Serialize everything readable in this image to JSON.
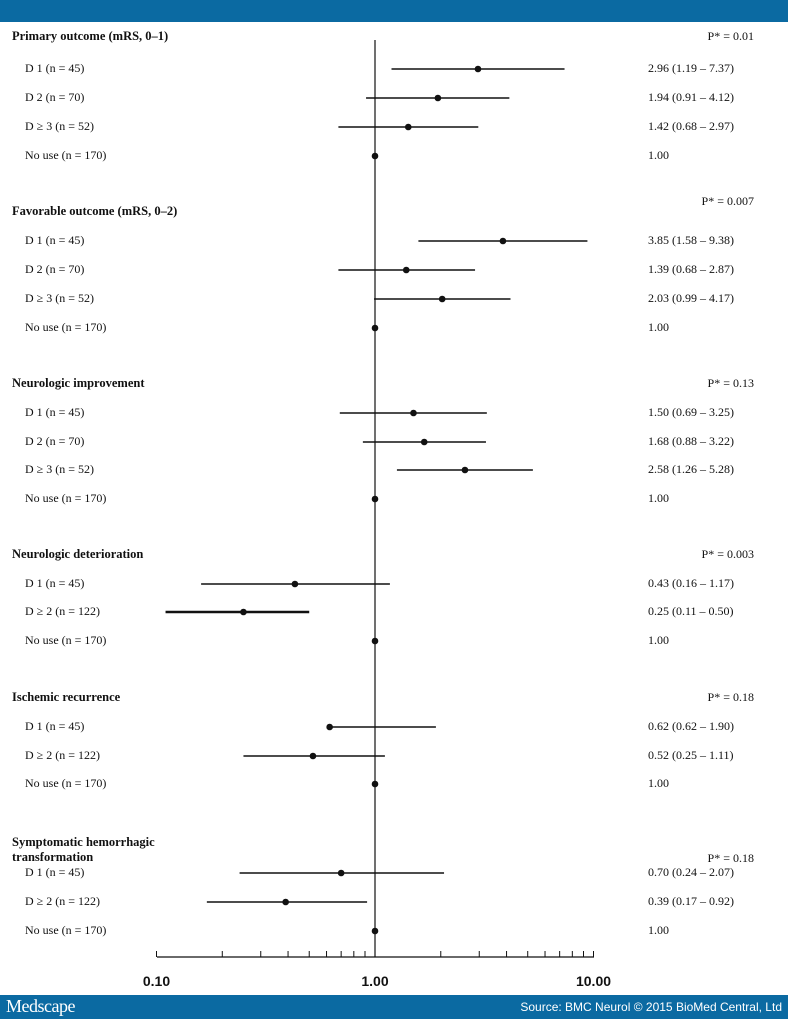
{
  "header": {
    "color": "#0b6aa2"
  },
  "footer": {
    "logo": "Medscape",
    "source": "Source: BMC Neurol © 2015 BioMed Central, Ltd"
  },
  "chart_data": {
    "type": "forest",
    "xscale": "log",
    "xlim": [
      0.1,
      10
    ],
    "reference_line": 1.0,
    "x_ticks": [
      "0.10",
      "1.00",
      "10.00"
    ],
    "groups": [
      {
        "title": "Primary outcome (mRS, 0–1)",
        "p_value": "P* = 0.01",
        "rows": [
          {
            "label": "D 1 (n = 45)",
            "text": "2.96 (1.19 – 7.37)",
            "or": 2.96,
            "lo": 1.19,
            "hi": 7.37
          },
          {
            "label": "D 2 (n = 70)",
            "text": "1.94 (0.91 – 4.12)",
            "or": 1.94,
            "lo": 0.91,
            "hi": 4.12
          },
          {
            "label": "D ≥ 3 (n = 52)",
            "text": "1.42 (0.68 – 2.97)",
            "or": 1.42,
            "lo": 0.68,
            "hi": 2.97
          },
          {
            "label": "No use (n = 170)",
            "text": "1.00",
            "or": 1.0
          }
        ]
      },
      {
        "title": "Favorable outcome (mRS, 0–2)",
        "p_value": "P* = 0.007",
        "rows": [
          {
            "label": "D 1 (n = 45)",
            "text": "3.85 (1.58 – 9.38)",
            "or": 3.85,
            "lo": 1.58,
            "hi": 9.38
          },
          {
            "label": "D 2 (n = 70)",
            "text": "1.39 (0.68 – 2.87)",
            "or": 1.39,
            "lo": 0.68,
            "hi": 2.87
          },
          {
            "label": "D ≥ 3 (n = 52)",
            "text": "2.03 (0.99 – 4.17)",
            "or": 2.03,
            "lo": 0.99,
            "hi": 4.17
          },
          {
            "label": "No use (n = 170)",
            "text": "1.00",
            "or": 1.0
          }
        ]
      },
      {
        "title": "Neurologic improvement",
        "p_value": "P* = 0.13",
        "rows": [
          {
            "label": "D 1 (n = 45)",
            "text": "1.50 (0.69 – 3.25)",
            "or": 1.5,
            "lo": 0.69,
            "hi": 3.25
          },
          {
            "label": "D 2 (n = 70)",
            "text": "1.68 (0.88 – 3.22)",
            "or": 1.68,
            "lo": 0.88,
            "hi": 3.22
          },
          {
            "label": "D ≥ 3 (n = 52)",
            "text": "2.58 (1.26 – 5.28)",
            "or": 2.58,
            "lo": 1.26,
            "hi": 5.28
          },
          {
            "label": "No use (n = 170)",
            "text": "1.00",
            "or": 1.0
          }
        ]
      },
      {
        "title": "Neurologic deterioration",
        "p_value": "P* = 0.003",
        "rows": [
          {
            "label": "D 1 (n = 45)",
            "text": "0.43 (0.16 – 1.17)",
            "or": 0.43,
            "lo": 0.16,
            "hi": 1.17
          },
          {
            "label": "D ≥ 2 (n = 122)",
            "text": "0.25 (0.11 – 0.50)",
            "or": 0.25,
            "lo": 0.11,
            "hi": 0.5
          },
          {
            "label": "No use (n = 170)",
            "text": "1.00",
            "or": 1.0
          }
        ]
      },
      {
        "title": "Ischemic recurrence",
        "p_value": "P* = 0.18",
        "rows": [
          {
            "label": "D 1 (n = 45)",
            "text": "0.62 (0.62 – 1.90)",
            "or": 0.62,
            "lo": 0.62,
            "hi": 1.9
          },
          {
            "label": "D ≥ 2 (n = 122)",
            "text": "0.52 (0.25 – 1.11)",
            "or": 0.52,
            "lo": 0.25,
            "hi": 1.11
          },
          {
            "label": "No use (n = 170)",
            "text": "1.00",
            "or": 1.0
          }
        ]
      },
      {
        "title": "Symptomatic hemorrhagic transformation",
        "p_value": "P* = 0.18",
        "rows": [
          {
            "label": "D 1 (n = 45)",
            "text": "0.70 (0.24 – 2.07)",
            "or": 0.7,
            "lo": 0.24,
            "hi": 2.07
          },
          {
            "label": "D ≥ 2 (n = 122)",
            "text": "0.39 (0.17 – 0.92)",
            "or": 0.39,
            "lo": 0.17,
            "hi": 0.92
          },
          {
            "label": "No use (n = 170)",
            "text": "1.00",
            "or": 1.0
          }
        ]
      }
    ]
  }
}
